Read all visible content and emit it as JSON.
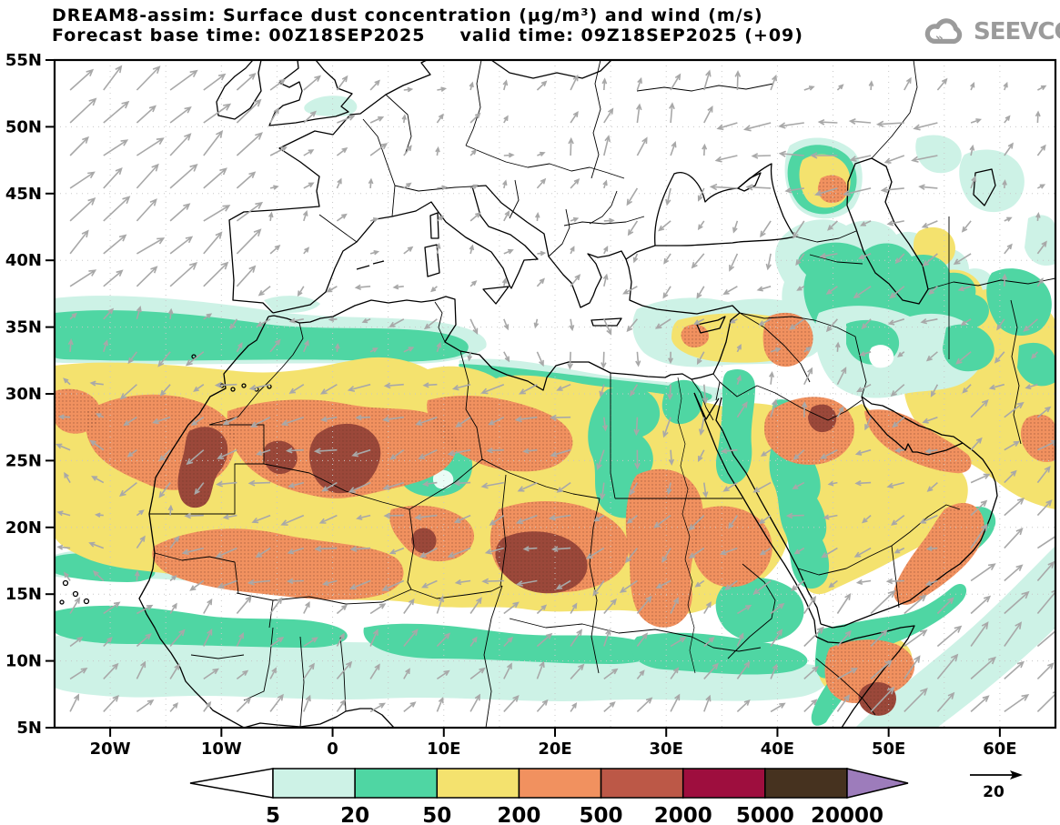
{
  "header": {
    "title_line1": "DREAM8-assim: Surface dust concentration (μg/m³) and wind (m/s)",
    "title_line2": "Forecast base time: 00Z18SEP2025     valid time: 09Z18SEP2025 (+09)",
    "logo_text": "SEEVCCC"
  },
  "axes": {
    "lat_labels": [
      "55N",
      "50N",
      "45N",
      "40N",
      "35N",
      "30N",
      "25N",
      "20N",
      "15N",
      "10N",
      "5N"
    ],
    "lat_values": [
      55,
      50,
      45,
      40,
      35,
      30,
      25,
      20,
      15,
      10,
      5
    ],
    "lon_labels": [
      "20W",
      "10W",
      "0",
      "10E",
      "20E",
      "30E",
      "40E",
      "50E",
      "60E"
    ],
    "lon_values": [
      -20,
      -10,
      0,
      10,
      20,
      30,
      40,
      50,
      60
    ],
    "extent": {
      "lon_min": -25,
      "lon_max": 65.5,
      "lat_min": 5,
      "lat_max": 55
    }
  },
  "legend": {
    "tick_labels": [
      "5",
      "20",
      "50",
      "200",
      "500",
      "2000",
      "5000",
      "20000"
    ],
    "band_colors": [
      "#ffffff",
      "#cdf2e6",
      "#4fd6a3",
      "#f4e26e",
      "#f1915f",
      "#bc5847",
      "#9e0e3e",
      "#46321f",
      "#9d7cbb"
    ],
    "units": "μg/m³"
  },
  "wind_reference": {
    "label": "20",
    "units": "m/s"
  },
  "colors": {
    "wind_arrow": "#a8a8a8",
    "graticule": "#c8c8c8",
    "coastline": "#000000",
    "title_text": "#000000",
    "logo_gray": "#9b9b9b",
    "dust_core_shade": "#9b483a"
  },
  "wind_field": {
    "grid_step_lon_deg": 3.0,
    "grid_step_lat_deg": 2.45,
    "regions": [
      {
        "name": "north-of-caucasus",
        "lat": [
          44,
          51.5
        ],
        "lon": [
          36,
          56
        ],
        "u": -9,
        "v": -1
      },
      {
        "name": "south-caspian",
        "lat": [
          34,
          44
        ],
        "lon": [
          44,
          58
        ],
        "u": -5,
        "v": -3
      },
      {
        "name": "black-sea",
        "lat": [
          40,
          47
        ],
        "lon": [
          26,
          44
        ],
        "u": -3,
        "v": -5
      },
      {
        "name": "anatolia",
        "lat": [
          35.5,
          40
        ],
        "lon": [
          26,
          46
        ],
        "u": -4,
        "v": -3
      },
      {
        "name": "northeast-atlantic",
        "lat": [
          36,
          55.5
        ],
        "lon": [
          -25.5,
          -7
        ],
        "u": 9,
        "v": 8
      },
      {
        "name": "uk-channel",
        "lat": [
          47,
          55.5
        ],
        "lon": [
          -7,
          4
        ],
        "u": 5,
        "v": 4
      },
      {
        "name": "tropical-atlantic",
        "lat": [
          4,
          16
        ],
        "lon": [
          -25.5,
          -17
        ],
        "u": 5,
        "v": 5
      },
      {
        "name": "subtropical-atlantic",
        "lat": [
          16,
          31
        ],
        "lon": [
          -25.5,
          -19
        ],
        "u": -4,
        "v": 2
      },
      {
        "name": "canary-trades",
        "lat": [
          23,
          34
        ],
        "lon": [
          -19,
          -9
        ],
        "u": -5,
        "v": -4
      },
      {
        "name": "west-mediterranean",
        "lat": [
          34,
          40
        ],
        "lon": [
          -9,
          12
        ],
        "u": -4,
        "v": -2
      },
      {
        "name": "central-mediterranean",
        "lat": [
          31,
          38
        ],
        "lon": [
          12,
          26
        ],
        "u": 1,
        "v": -5
      },
      {
        "name": "egypt-levant",
        "lat": [
          22,
          34
        ],
        "lon": [
          24,
          36
        ],
        "u": -1,
        "v": -6
      },
      {
        "name": "north-saudi",
        "lat": [
          27,
          33
        ],
        "lon": [
          36,
          47
        ],
        "u": 2,
        "v": 5
      },
      {
        "name": "sudan",
        "lat": [
          15,
          22
        ],
        "lon": [
          22,
          40
        ],
        "u": -5,
        "v": -4
      },
      {
        "name": "arabia",
        "lat": [
          15,
          27
        ],
        "lon": [
          36,
          56
        ],
        "u": -5,
        "v": -2
      },
      {
        "name": "se-iran-coast",
        "lat": [
          20,
          30
        ],
        "lon": [
          56,
          66
        ],
        "u": 6,
        "v": 5
      },
      {
        "name": "iran",
        "lat": [
          26,
          38
        ],
        "lon": [
          48,
          66
        ],
        "u": -4,
        "v": -3
      },
      {
        "name": "arabian-sea",
        "lat": [
          4,
          20
        ],
        "lon": [
          46,
          66
        ],
        "u": 8,
        "v": 8
      },
      {
        "name": "horn-of-africa",
        "lat": [
          4,
          14
        ],
        "lon": [
          40,
          46
        ],
        "u": 6,
        "v": 6
      },
      {
        "name": "sahara-easterlies",
        "lat": [
          16,
          31
        ],
        "lon": [
          -14,
          28
        ],
        "u": -7,
        "v": -2
      },
      {
        "name": "sahel-monsoon",
        "lat": [
          4,
          16
        ],
        "lon": [
          -17,
          42
        ],
        "u": 4,
        "v": 5
      },
      {
        "name": "east-europe",
        "lat": [
          47,
          55.5
        ],
        "lon": [
          20,
          40
        ],
        "u": 2,
        "v": 6
      },
      {
        "name": "europe",
        "lat": [
          40,
          55.5
        ],
        "lon": [
          -7,
          26
        ],
        "u": 2,
        "v": 2
      }
    ],
    "default": {
      "u": 2,
      "v": 3
    }
  }
}
